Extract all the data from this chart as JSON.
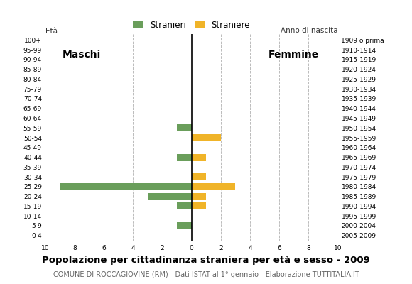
{
  "age_groups": [
    "0-4",
    "5-9",
    "10-14",
    "15-19",
    "20-24",
    "25-29",
    "30-34",
    "35-39",
    "40-44",
    "45-49",
    "50-54",
    "55-59",
    "60-64",
    "65-69",
    "70-74",
    "75-79",
    "80-84",
    "85-89",
    "90-94",
    "95-99",
    "100+"
  ],
  "birth_years": [
    "2005-2009",
    "2000-2004",
    "1995-1999",
    "1990-1994",
    "1985-1989",
    "1980-1984",
    "1975-1979",
    "1970-1974",
    "1965-1969",
    "1960-1964",
    "1955-1959",
    "1950-1954",
    "1945-1949",
    "1940-1944",
    "1935-1939",
    "1930-1934",
    "1925-1929",
    "1920-1924",
    "1915-1919",
    "1910-1914",
    "1909 o prima"
  ],
  "males": [
    0,
    1,
    0,
    1,
    3,
    9,
    0,
    0,
    1,
    0,
    0,
    1,
    0,
    0,
    0,
    0,
    0,
    0,
    0,
    0,
    0
  ],
  "females": [
    0,
    0,
    0,
    1,
    1,
    3,
    1,
    0,
    1,
    0,
    2,
    0,
    0,
    0,
    0,
    0,
    0,
    0,
    0,
    0,
    0
  ],
  "male_color": "#6a9e5b",
  "female_color": "#f0b429",
  "xlim": 10,
  "title": "Popolazione per cittadinanza straniera per età e sesso - 2009",
  "subtitle": "COMUNE DI ROCCAGIOVINE (RM) - Dati ISTAT al 1° gennaio - Elaborazione TUTTITALIA.IT",
  "legend_male": "Stranieri",
  "legend_female": "Straniere",
  "ylabel_left": "Età",
  "ylabel_right": "Anno di nascita",
  "label_maschi": "Maschi",
  "label_femmine": "Femmine",
  "bg_color": "#ffffff",
  "grid_color": "#bbbbbb",
  "bar_height": 0.72,
  "title_fontsize": 9.5,
  "subtitle_fontsize": 7.0,
  "axis_label_fontsize": 7.5,
  "tick_fontsize": 6.5,
  "legend_fontsize": 8.5,
  "maschi_fontsize": 10,
  "femmine_fontsize": 10
}
